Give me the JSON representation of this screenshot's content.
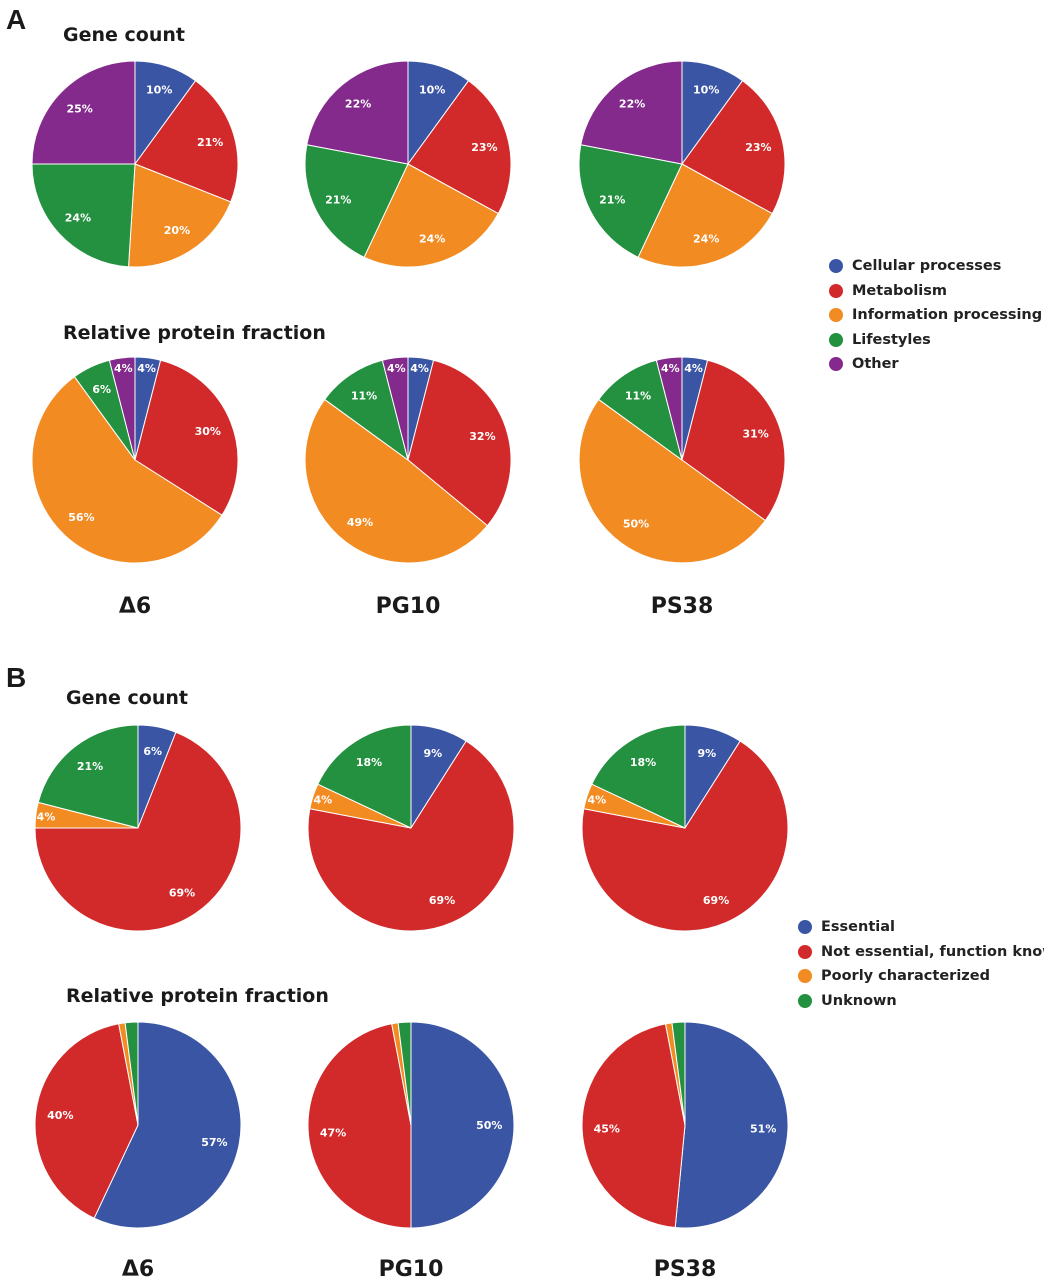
{
  "panels": {
    "A": {
      "letter": "A",
      "gene_title": "Gene count",
      "protein_title": "Relative protein fraction",
      "strains": [
        "Δ6",
        "PG10",
        "PS38"
      ],
      "legend": [
        {
          "label": "Cellular processes",
          "color": "#3a55a4"
        },
        {
          "label": "Metabolism",
          "color": "#d22a2a"
        },
        {
          "label": "Information processing",
          "color": "#f28b22"
        },
        {
          "label": "Lifestyles",
          "color": "#23913f"
        },
        {
          "label": "Other",
          "color": "#842a8c"
        }
      ]
    },
    "B": {
      "letter": "B",
      "gene_title": "Gene count",
      "protein_title": "Relative protein fraction",
      "strains": [
        "Δ6",
        "PG10",
        "PS38"
      ],
      "legend": [
        {
          "label": "Essential",
          "color": "#3a55a4"
        },
        {
          "label": "Not essential, function known",
          "color": "#d22a2a"
        },
        {
          "label": "Poorly characterized",
          "color": "#f28b22"
        },
        {
          "label": "Unknown",
          "color": "#23913f"
        }
      ]
    }
  },
  "chart_data": [
    {
      "type": "pie",
      "panel": "A",
      "group": "Gene count",
      "strain": "Δ6",
      "categories": [
        "Cellular processes",
        "Metabolism",
        "Information processing",
        "Lifestyles",
        "Other"
      ],
      "values": [
        10,
        21,
        20,
        24,
        25
      ],
      "labels": [
        "10%",
        "21%",
        "20%",
        "24%",
        "25%"
      ]
    },
    {
      "type": "pie",
      "panel": "A",
      "group": "Gene count",
      "strain": "PG10",
      "categories": [
        "Cellular processes",
        "Metabolism",
        "Information processing",
        "Lifestyles",
        "Other"
      ],
      "values": [
        10,
        23,
        24,
        21,
        22
      ],
      "labels": [
        "10%",
        "23%",
        "24%",
        "21%",
        "22%"
      ]
    },
    {
      "type": "pie",
      "panel": "A",
      "group": "Gene count",
      "strain": "PS38",
      "categories": [
        "Cellular processes",
        "Metabolism",
        "Information processing",
        "Lifestyles",
        "Other"
      ],
      "values": [
        10,
        23,
        24,
        21,
        22
      ],
      "labels": [
        "10%",
        "23%",
        "24%",
        "21%",
        "22%"
      ]
    },
    {
      "type": "pie",
      "panel": "A",
      "group": "Relative protein fraction",
      "strain": "Δ6",
      "categories": [
        "Cellular processes",
        "Metabolism",
        "Information processing",
        "Lifestyles",
        "Other"
      ],
      "values": [
        4,
        30,
        56,
        6,
        4
      ],
      "labels": [
        "4%",
        "30%",
        "56%",
        "6%",
        "4%"
      ]
    },
    {
      "type": "pie",
      "panel": "A",
      "group": "Relative protein fraction",
      "strain": "PG10",
      "categories": [
        "Cellular processes",
        "Metabolism",
        "Information processing",
        "Lifestyles",
        "Other"
      ],
      "values": [
        4,
        32,
        49,
        11,
        4
      ],
      "labels": [
        "4%",
        "32%",
        "49%",
        "11%",
        "4%"
      ]
    },
    {
      "type": "pie",
      "panel": "A",
      "group": "Relative protein fraction",
      "strain": "PS38",
      "categories": [
        "Cellular processes",
        "Metabolism",
        "Information processing",
        "Lifestyles",
        "Other"
      ],
      "values": [
        4,
        31,
        50,
        11,
        4
      ],
      "labels": [
        "4%",
        "31%",
        "50%",
        "11%",
        "4%"
      ]
    },
    {
      "type": "pie",
      "panel": "B",
      "group": "Gene count",
      "strain": "Δ6",
      "categories": [
        "Essential",
        "Not essential, function known",
        "Poorly characterized",
        "Unknown"
      ],
      "values": [
        6,
        69,
        4,
        21
      ],
      "labels": [
        "6%",
        "69%",
        "4%",
        "21%"
      ]
    },
    {
      "type": "pie",
      "panel": "B",
      "group": "Gene count",
      "strain": "PG10",
      "categories": [
        "Essential",
        "Not essential, function known",
        "Poorly characterized",
        "Unknown"
      ],
      "values": [
        9,
        69,
        4,
        18
      ],
      "labels": [
        "9%",
        "69%",
        "4%",
        "18%"
      ]
    },
    {
      "type": "pie",
      "panel": "B",
      "group": "Gene count",
      "strain": "PS38",
      "categories": [
        "Essential",
        "Not essential, function known",
        "Poorly characterized",
        "Unknown"
      ],
      "values": [
        9,
        69,
        4,
        18
      ],
      "labels": [
        "9%",
        "69%",
        "4%",
        "18%"
      ]
    },
    {
      "type": "pie",
      "panel": "B",
      "group": "Relative protein fraction",
      "strain": "Δ6",
      "categories": [
        "Essential",
        "Not essential, function known",
        "Poorly characterized",
        "Unknown"
      ],
      "values": [
        57,
        40,
        1,
        2
      ],
      "labels": [
        "57%",
        "40%",
        "",
        ""
      ]
    },
    {
      "type": "pie",
      "panel": "B",
      "group": "Relative protein fraction",
      "strain": "PG10",
      "categories": [
        "Essential",
        "Not essential, function known",
        "Poorly characterized",
        "Unknown"
      ],
      "values": [
        50,
        47,
        1,
        2
      ],
      "labels": [
        "50%",
        "47%",
        "",
        ""
      ]
    },
    {
      "type": "pie",
      "panel": "B",
      "group": "Relative protein fraction",
      "strain": "PS38",
      "categories": [
        "Essential",
        "Not essential, function known",
        "Poorly characterized",
        "Unknown"
      ],
      "values": [
        51,
        45,
        1,
        2
      ],
      "labels": [
        "51%",
        "45%",
        "",
        ""
      ]
    }
  ]
}
